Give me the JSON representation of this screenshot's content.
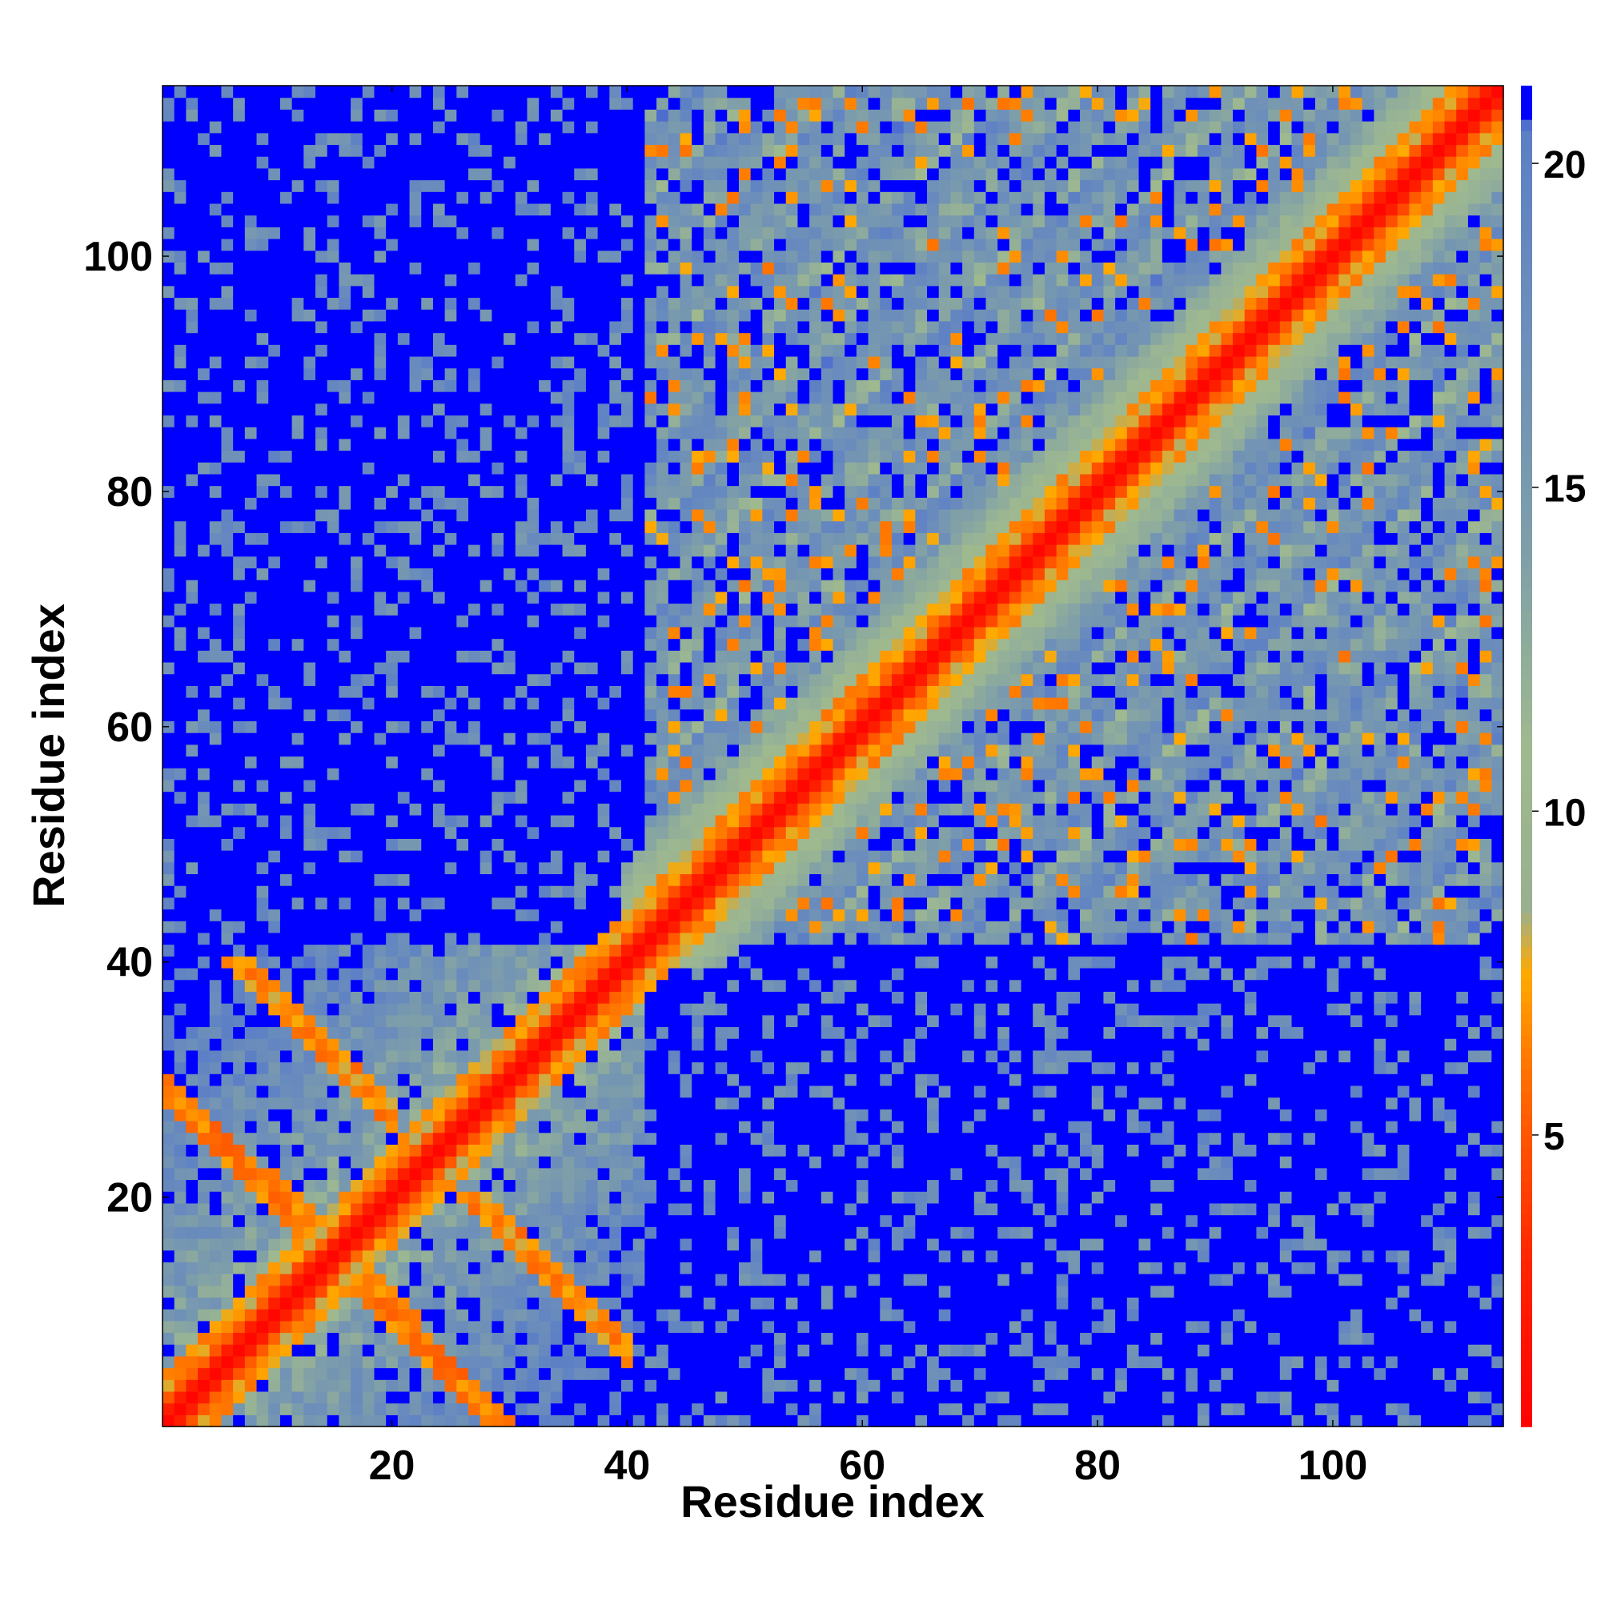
{
  "chart_data": {
    "type": "heatmap",
    "title": "",
    "xlabel": "Residue index",
    "ylabel": "Residue index",
    "n_residues": 114,
    "xlim": [
      1,
      114
    ],
    "ylim": [
      1,
      114
    ],
    "x_ticks": [
      20,
      40,
      60,
      80,
      100
    ],
    "x_tick_labels": [
      "20",
      "40",
      "60",
      "80",
      "100"
    ],
    "y_ticks": [
      20,
      40,
      60,
      80,
      100
    ],
    "y_tick_labels": [
      "20",
      "40",
      "60",
      "80",
      "100"
    ],
    "colorbar": {
      "range": [
        0.5,
        21.2
      ],
      "ticks": [
        5,
        10,
        15,
        20
      ],
      "tick_labels": [
        "5",
        "10",
        "15",
        "20"
      ],
      "color_stops": [
        {
          "value": 0.5,
          "color": "#ff0000"
        },
        {
          "value": 3.0,
          "color": "#ff2400"
        },
        {
          "value": 4.5,
          "color": "#ff4800"
        },
        {
          "value": 6.0,
          "color": "#ff7200"
        },
        {
          "value": 7.5,
          "color": "#ffaa00"
        },
        {
          "value": 8.5,
          "color": "#98b090"
        },
        {
          "value": 11.0,
          "color": "#9fb98f"
        },
        {
          "value": 14.0,
          "color": "#7f9fa8"
        },
        {
          "value": 18.0,
          "color": "#6a8cbc"
        },
        {
          "value": 20.5,
          "color": "#5c7fc6"
        },
        {
          "value": 21.2,
          "color": "#0000ff"
        }
      ],
      "saturated_color": "#0000ff"
    },
    "matrix_description_note": "",
    "structure": {
      "diagonal_band_width": 4,
      "helix_segments": [
        [
          45,
          114
        ]
      ],
      "sheet_contacts": [
        {
          "i": [
            2,
            12
          ],
          "j": [
            12,
            29
          ],
          "antiparallel": true
        },
        {
          "i": [
            6,
            18
          ],
          "j": [
            15,
            40
          ],
          "antiparallel": true
        }
      ],
      "blue_regions": [
        {
          "x": [
            1,
            42
          ],
          "y": [
            42,
            114
          ]
        },
        {
          "x": [
            42,
            114
          ],
          "y": [
            1,
            35
          ]
        }
      ]
    }
  }
}
